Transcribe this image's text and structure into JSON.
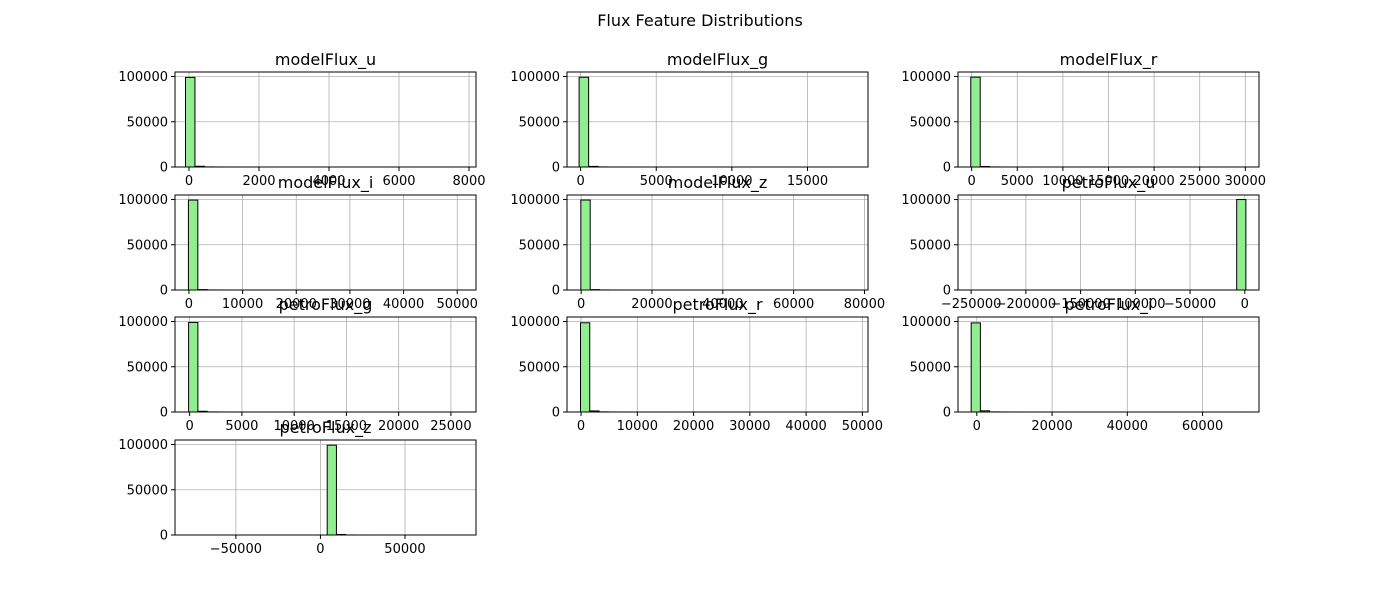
{
  "chart_data": {
    "type": "bar",
    "title": "Flux Feature Distributions",
    "grid": true,
    "bar_color": "#90ee90",
    "edge_color": "#000000",
    "layout": {
      "rows": 4,
      "cols": 3
    },
    "subplots": [
      {
        "title": "modelFlux_u",
        "bins": 30,
        "xlim": [
          -400,
          8200
        ],
        "ylim": [
          0,
          105000
        ],
        "bin_range": [
          -100,
          8000
        ],
        "xticks": [
          {
            "value": 0,
            "label": "0"
          },
          {
            "value": 2000,
            "label": "2000"
          },
          {
            "value": 4000,
            "label": "4000"
          },
          {
            "value": 6000,
            "label": "6000"
          },
          {
            "value": 8000,
            "label": "8000"
          }
        ],
        "yticks": [
          {
            "value": 0,
            "label": "0"
          },
          {
            "value": 50000,
            "label": "50000"
          },
          {
            "value": 100000,
            "label": "100000"
          }
        ],
        "counts": [
          99000,
          800,
          120,
          40,
          15,
          8,
          5,
          3,
          2,
          1,
          1,
          1,
          0,
          0,
          0,
          0,
          0,
          0,
          0,
          0,
          0,
          0,
          0,
          0,
          0,
          0,
          0,
          0,
          0,
          1
        ]
      },
      {
        "title": "modelFlux_g",
        "bins": 30,
        "xlim": [
          -900,
          19000
        ],
        "ylim": [
          0,
          105000
        ],
        "bin_range": [
          -100,
          18800
        ],
        "xticks": [
          {
            "value": 0,
            "label": "0"
          },
          {
            "value": 5000,
            "label": "5000"
          },
          {
            "value": 10000,
            "label": "10000"
          },
          {
            "value": 15000,
            "label": "15000"
          }
        ],
        "yticks": [
          {
            "value": 0,
            "label": "0"
          },
          {
            "value": 50000,
            "label": "50000"
          },
          {
            "value": 100000,
            "label": "100000"
          }
        ],
        "counts": [
          99200,
          650,
          90,
          30,
          12,
          6,
          4,
          2,
          1,
          1,
          1,
          0,
          0,
          0,
          0,
          0,
          0,
          0,
          0,
          0,
          0,
          0,
          0,
          0,
          0,
          0,
          0,
          0,
          0,
          1
        ]
      },
      {
        "title": "modelFlux_r",
        "bins": 30,
        "xlim": [
          -1500,
          31500
        ],
        "ylim": [
          0,
          105000
        ],
        "bin_range": [
          -100,
          31000
        ],
        "xticks": [
          {
            "value": 0,
            "label": "0"
          },
          {
            "value": 5000,
            "label": "5000"
          },
          {
            "value": 10000,
            "label": "10000"
          },
          {
            "value": 15000,
            "label": "15000"
          },
          {
            "value": 20000,
            "label": "20000"
          },
          {
            "value": 25000,
            "label": "25000"
          },
          {
            "value": 30000,
            "label": "30000"
          }
        ],
        "yticks": [
          {
            "value": 0,
            "label": "0"
          },
          {
            "value": 50000,
            "label": "50000"
          },
          {
            "value": 100000,
            "label": "100000"
          }
        ],
        "counts": [
          99300,
          550,
          80,
          25,
          10,
          5,
          3,
          2,
          1,
          1,
          0,
          0,
          0,
          0,
          0,
          0,
          0,
          0,
          0,
          0,
          0,
          0,
          0,
          0,
          0,
          0,
          0,
          0,
          0,
          1
        ]
      },
      {
        "title": "modelFlux_i",
        "bins": 30,
        "xlim": [
          -2600,
          53500
        ],
        "ylim": [
          0,
          105000
        ],
        "bin_range": [
          -100,
          52500
        ],
        "xticks": [
          {
            "value": 0,
            "label": "0"
          },
          {
            "value": 10000,
            "label": "10000"
          },
          {
            "value": 20000,
            "label": "20000"
          },
          {
            "value": 30000,
            "label": "30000"
          },
          {
            "value": 40000,
            "label": "40000"
          },
          {
            "value": 50000,
            "label": "50000"
          }
        ],
        "yticks": [
          {
            "value": 0,
            "label": "0"
          },
          {
            "value": 50000,
            "label": "50000"
          },
          {
            "value": 100000,
            "label": "100000"
          }
        ],
        "counts": [
          99400,
          450,
          70,
          20,
          8,
          4,
          2,
          1,
          1,
          0,
          0,
          0,
          0,
          0,
          0,
          0,
          0,
          0,
          0,
          0,
          0,
          0,
          0,
          0,
          0,
          0,
          0,
          0,
          0,
          1
        ]
      },
      {
        "title": "modelFlux_z",
        "bins": 30,
        "xlim": [
          -4000,
          81000
        ],
        "ylim": [
          0,
          105000
        ],
        "bin_range": [
          -100,
          79500
        ],
        "xticks": [
          {
            "value": 0,
            "label": "0"
          },
          {
            "value": 20000,
            "label": "20000"
          },
          {
            "value": 40000,
            "label": "40000"
          },
          {
            "value": 60000,
            "label": "60000"
          },
          {
            "value": 80000,
            "label": "80000"
          }
        ],
        "yticks": [
          {
            "value": 0,
            "label": "0"
          },
          {
            "value": 50000,
            "label": "50000"
          },
          {
            "value": 100000,
            "label": "100000"
          }
        ],
        "counts": [
          99450,
          420,
          65,
          18,
          8,
          4,
          2,
          1,
          1,
          0,
          0,
          0,
          0,
          0,
          0,
          0,
          0,
          0,
          0,
          0,
          0,
          0,
          0,
          0,
          0,
          0,
          0,
          0,
          0,
          1
        ]
      },
      {
        "title": "petroFlux_u",
        "bins": 30,
        "xlim": [
          -262000,
          13000
        ],
        "ylim": [
          0,
          105000
        ],
        "bin_range": [
          -250000,
          1000
        ],
        "xticks": [
          {
            "value": -250000,
            "label": "−250000"
          },
          {
            "value": -200000,
            "label": "−200000"
          },
          {
            "value": -150000,
            "label": "−150000"
          },
          {
            "value": -100000,
            "label": "−100000"
          },
          {
            "value": -50000,
            "label": "−50000"
          },
          {
            "value": 0,
            "label": "0"
          }
        ],
        "yticks": [
          {
            "value": 0,
            "label": "0"
          },
          {
            "value": 50000,
            "label": "50000"
          },
          {
            "value": 100000,
            "label": "100000"
          }
        ],
        "counts": [
          1,
          0,
          0,
          0,
          0,
          0,
          0,
          0,
          0,
          0,
          0,
          0,
          0,
          0,
          0,
          0,
          0,
          0,
          0,
          0,
          0,
          0,
          0,
          0,
          0,
          0,
          0,
          0,
          0,
          99990
        ]
      },
      {
        "title": "petroFlux_g",
        "bins": 30,
        "xlim": [
          -1400,
          27400
        ],
        "ylim": [
          0,
          105000
        ],
        "bin_range": [
          -100,
          26600
        ],
        "xticks": [
          {
            "value": 0,
            "label": "0"
          },
          {
            "value": 5000,
            "label": "5000"
          },
          {
            "value": 10000,
            "label": "10000"
          },
          {
            "value": 15000,
            "label": "15000"
          },
          {
            "value": 20000,
            "label": "20000"
          },
          {
            "value": 25000,
            "label": "25000"
          }
        ],
        "yticks": [
          {
            "value": 0,
            "label": "0"
          },
          {
            "value": 50000,
            "label": "50000"
          },
          {
            "value": 100000,
            "label": "100000"
          }
        ],
        "counts": [
          99000,
          800,
          110,
          35,
          14,
          7,
          4,
          2,
          1,
          1,
          1,
          0,
          0,
          0,
          0,
          0,
          0,
          0,
          0,
          0,
          0,
          0,
          0,
          0,
          0,
          0,
          0,
          0,
          0,
          1
        ]
      },
      {
        "title": "petroFlux_r",
        "bins": 30,
        "xlim": [
          -2500,
          51000
        ],
        "ylim": [
          0,
          105000
        ],
        "bin_range": [
          -100,
          49200
        ],
        "xticks": [
          {
            "value": 0,
            "label": "0"
          },
          {
            "value": 10000,
            "label": "10000"
          },
          {
            "value": 20000,
            "label": "20000"
          },
          {
            "value": 30000,
            "label": "30000"
          },
          {
            "value": 40000,
            "label": "40000"
          },
          {
            "value": 50000,
            "label": "50000"
          }
        ],
        "yticks": [
          {
            "value": 0,
            "label": "0"
          },
          {
            "value": 50000,
            "label": "50000"
          },
          {
            "value": 100000,
            "label": "100000"
          }
        ],
        "counts": [
          98600,
          1200,
          140,
          40,
          12,
          6,
          3,
          2,
          1,
          1,
          0,
          0,
          0,
          0,
          0,
          0,
          0,
          0,
          0,
          0,
          0,
          0,
          0,
          0,
          0,
          0,
          0,
          0,
          0,
          1
        ]
      },
      {
        "title": "petroFlux_i",
        "bins": 30,
        "xlim": [
          -5000,
          75000
        ],
        "ylim": [
          0,
          105000
        ],
        "bin_range": [
          -1500,
          72000
        ],
        "xticks": [
          {
            "value": 0,
            "label": "0"
          },
          {
            "value": 20000,
            "label": "20000"
          },
          {
            "value": 40000,
            "label": "40000"
          },
          {
            "value": 60000,
            "label": "60000"
          }
        ],
        "yticks": [
          {
            "value": 0,
            "label": "0"
          },
          {
            "value": 50000,
            "label": "50000"
          },
          {
            "value": 100000,
            "label": "100000"
          }
        ],
        "counts": [
          98500,
          1300,
          130,
          40,
          14,
          6,
          3,
          2,
          1,
          1,
          0,
          0,
          0,
          0,
          0,
          0,
          0,
          0,
          0,
          0,
          0,
          0,
          0,
          0,
          0,
          0,
          0,
          0,
          0,
          1
        ]
      },
      {
        "title": "petroFlux_z",
        "bins": 30,
        "xlim": [
          -86000,
          92000
        ],
        "ylim": [
          0,
          105000
        ],
        "bin_range": [
          -78000,
          86000
        ],
        "xticks": [
          {
            "value": -50000,
            "label": "−50000"
          },
          {
            "value": 0,
            "label": "0"
          },
          {
            "value": 50000,
            "label": "50000"
          }
        ],
        "yticks": [
          {
            "value": 0,
            "label": "0"
          },
          {
            "value": 50000,
            "label": "50000"
          },
          {
            "value": 100000,
            "label": "100000"
          }
        ],
        "counts": [
          1,
          0,
          0,
          0,
          0,
          0,
          0,
          0,
          0,
          0,
          0,
          0,
          0,
          0,
          3,
          99300,
          600,
          40,
          10,
          4,
          2,
          1,
          0,
          0,
          0,
          0,
          0,
          0,
          0,
          1
        ]
      }
    ]
  }
}
